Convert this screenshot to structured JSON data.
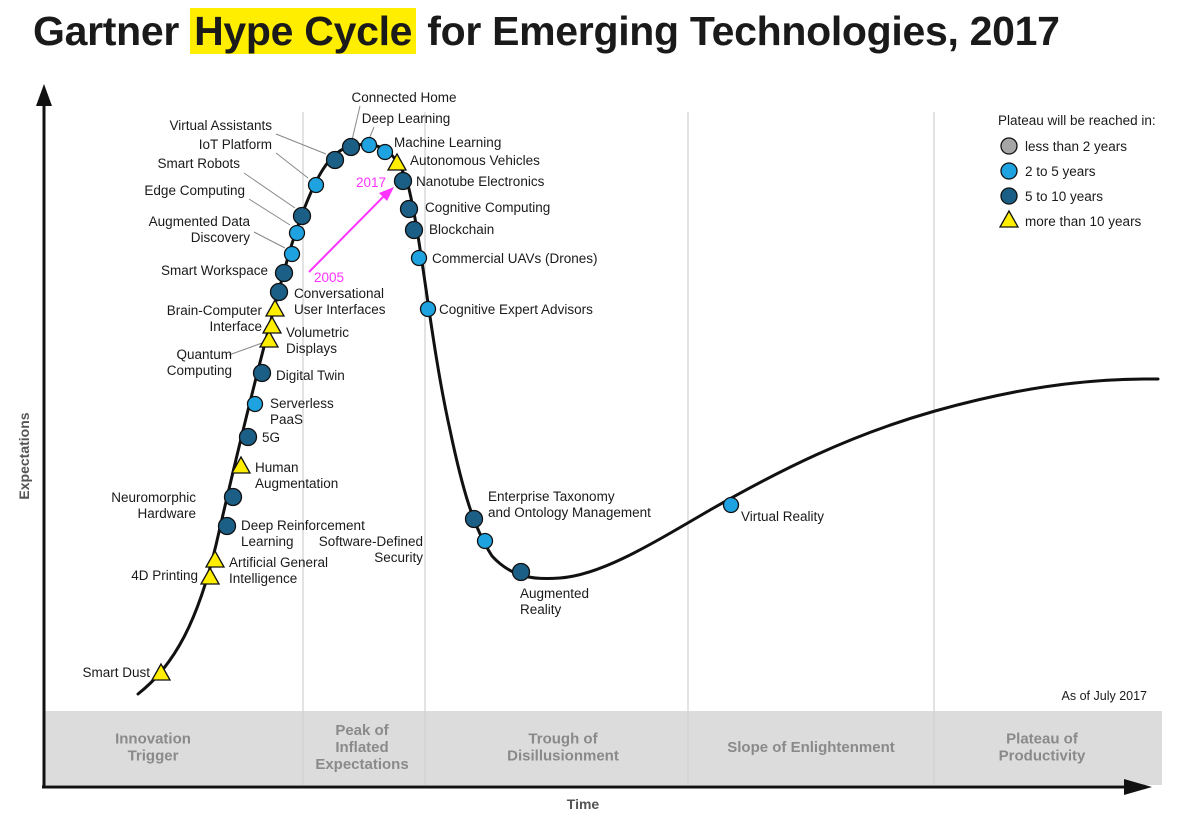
{
  "title": {
    "prefix": "Gartner ",
    "highlight": "Hype Cycle",
    "suffix": " for Emerging Technologies, 2017"
  },
  "axes": {
    "x": "Time",
    "y": "Expectations"
  },
  "note": "As of July 2017",
  "legend": {
    "title": "Plateau will be reached in:",
    "items": [
      {
        "label": "less than 2 years",
        "shape": "circle",
        "color": "#a6a6a6"
      },
      {
        "label": "2 to 5 years",
        "shape": "circle",
        "color": "#1fa3e0"
      },
      {
        "label": "5 to 10 years",
        "shape": "circle",
        "color": "#1b5f86"
      },
      {
        "label": "more than 10 years",
        "shape": "triangle",
        "color": "#ffee00"
      }
    ]
  },
  "phases": [
    {
      "lines": [
        "Innovation",
        "Trigger"
      ]
    },
    {
      "lines": [
        "Peak of",
        "Inflated",
        "Expectations"
      ]
    },
    {
      "lines": [
        "Trough of",
        "Disillusionment"
      ]
    },
    {
      "lines": [
        "Slope of Enlightenment"
      ]
    },
    {
      "lines": [
        "Plateau of",
        "Productivity"
      ]
    }
  ],
  "annotation": {
    "from": "2005",
    "to": "2017",
    "color": "#ff33ff"
  },
  "technologies": [
    {
      "name": [
        "Smart Dust"
      ],
      "category": "more than 10 years"
    },
    {
      "name": [
        "4D Printing"
      ],
      "category": "more than 10 years"
    },
    {
      "name": [
        "Artificial General",
        "Intelligence"
      ],
      "category": "more than 10 years"
    },
    {
      "name": [
        "Deep Reinforcement",
        "Learning"
      ],
      "category": "5 to 10 years"
    },
    {
      "name": [
        "Neuromorphic",
        "Hardware"
      ],
      "category": "5 to 10 years"
    },
    {
      "name": [
        "Human",
        "Augmentation"
      ],
      "category": "more than 10 years"
    },
    {
      "name": [
        "5G"
      ],
      "category": "5 to 10 years"
    },
    {
      "name": [
        "Serverless",
        "PaaS"
      ],
      "category": "2 to 5 years"
    },
    {
      "name": [
        "Digital Twin"
      ],
      "category": "5 to 10 years"
    },
    {
      "name": [
        "Quantum",
        "Computing"
      ],
      "category": "more than 10 years"
    },
    {
      "name": [
        "Volumetric",
        "Displays"
      ],
      "category": "more than 10 years"
    },
    {
      "name": [
        "Brain-Computer",
        "Interface"
      ],
      "category": "more than 10 years"
    },
    {
      "name": [
        "Conversational",
        "User Interfaces"
      ],
      "category": "5 to 10 years"
    },
    {
      "name": [
        "Smart Workspace"
      ],
      "category": "5 to 10 years"
    },
    {
      "name": [
        "Augmented Data",
        "Discovery"
      ],
      "category": "2 to 5 years"
    },
    {
      "name": [
        "Edge Computing"
      ],
      "category": "2 to 5 years"
    },
    {
      "name": [
        "Smart Robots"
      ],
      "category": "5 to 10 years"
    },
    {
      "name": [
        "IoT Platform"
      ],
      "category": "2 to 5 years"
    },
    {
      "name": [
        "Virtual Assistants"
      ],
      "category": "5 to 10 years"
    },
    {
      "name": [
        "Connected Home"
      ],
      "category": "5 to 10 years"
    },
    {
      "name": [
        "Deep Learning"
      ],
      "category": "2 to 5 years"
    },
    {
      "name": [
        "Machine Learning"
      ],
      "category": "2 to 5 years"
    },
    {
      "name": [
        "Autonomous Vehicles"
      ],
      "category": "more than 10 years"
    },
    {
      "name": [
        "Nanotube Electronics"
      ],
      "category": "5 to 10 years"
    },
    {
      "name": [
        "Cognitive Computing"
      ],
      "category": "5 to 10 years"
    },
    {
      "name": [
        "Blockchain"
      ],
      "category": "5 to 10 years"
    },
    {
      "name": [
        "Commercial UAVs (Drones)"
      ],
      "category": "2 to 5 years"
    },
    {
      "name": [
        "Cognitive Expert Advisors"
      ],
      "category": "2 to 5 years"
    },
    {
      "name": [
        "Enterprise Taxonomy",
        "and Ontology Management"
      ],
      "category": "5 to 10 years"
    },
    {
      "name": [
        "Software-Defined",
        "Security"
      ],
      "category": "2 to 5 years"
    },
    {
      "name": [
        "Augmented",
        "Reality"
      ],
      "category": "5 to 10 years"
    },
    {
      "name": [
        "Virtual Reality"
      ],
      "category": "2 to 5 years"
    }
  ]
}
